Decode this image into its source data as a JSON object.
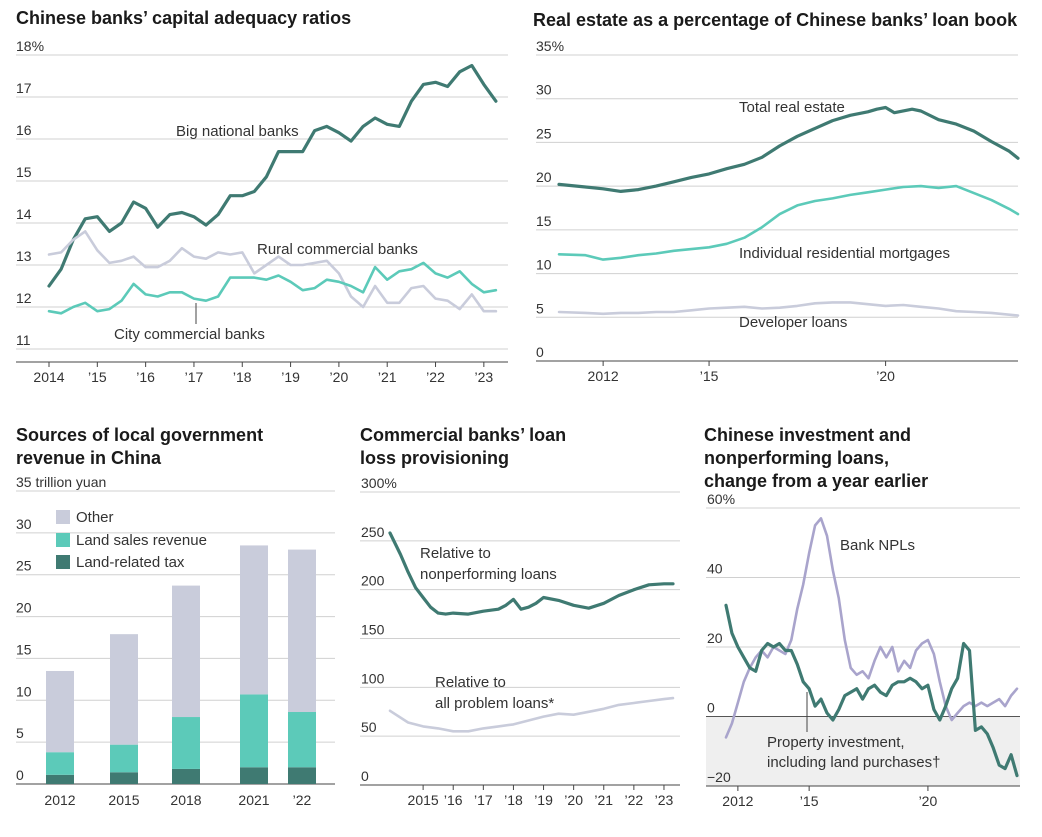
{
  "colors": {
    "dark": "#3f7a72",
    "teal": "#5ccab9",
    "light": "#c9ccdb",
    "lavender": "#a9a4cc",
    "grid": "#d0d0d0",
    "axis": "#333333",
    "shade": "#efefef"
  },
  "chart_data": [
    {
      "id": "car",
      "type": "line",
      "title": "Chinese banks’ capital adequacy ratios",
      "xlabel": "",
      "ylabel": "%",
      "xlim": [
        2014,
        2023.5
      ],
      "ylim": [
        11,
        18
      ],
      "yticks": [
        11,
        12,
        13,
        14,
        15,
        16,
        17,
        18
      ],
      "ytick_labels": [
        "11",
        "12",
        "13",
        "14",
        "15",
        "16",
        "17",
        "18%"
      ],
      "xticks": [
        2014,
        2015,
        2016,
        2017,
        2018,
        2019,
        2020,
        2021,
        2022,
        2023
      ],
      "xtick_labels": [
        "2014",
        "’15",
        "’16",
        "’17",
        "’18",
        "’19",
        "’20",
        "’21",
        "’22",
        "’23"
      ],
      "series": [
        {
          "name": "Big national banks",
          "color": "dark",
          "width": 3.2,
          "x": [
            2014,
            2014.25,
            2014.5,
            2014.75,
            2015,
            2015.25,
            2015.5,
            2015.75,
            2016,
            2016.25,
            2016.5,
            2016.75,
            2017,
            2017.25,
            2017.5,
            2017.75,
            2018,
            2018.25,
            2018.5,
            2018.75,
            2019,
            2019.25,
            2019.5,
            2019.75,
            2020,
            2020.25,
            2020.5,
            2020.75,
            2021,
            2021.25,
            2021.5,
            2021.75,
            2022,
            2022.25,
            2022.5,
            2022.75,
            2023,
            2023.25
          ],
          "y": [
            12.5,
            12.9,
            13.6,
            14.1,
            14.15,
            13.8,
            14.0,
            14.5,
            14.35,
            13.9,
            14.2,
            14.25,
            14.15,
            13.95,
            14.2,
            14.65,
            14.65,
            14.75,
            15.1,
            15.7,
            15.7,
            15.7,
            16.2,
            16.3,
            16.15,
            15.95,
            16.3,
            16.5,
            16.35,
            16.3,
            16.9,
            17.3,
            17.35,
            17.25,
            17.6,
            17.75,
            17.3,
            16.9
          ]
        },
        {
          "name": "Rural commercial banks",
          "color": "light",
          "width": 2.6,
          "x": [
            2014,
            2014.25,
            2014.5,
            2014.75,
            2015,
            2015.25,
            2015.5,
            2015.75,
            2016,
            2016.25,
            2016.5,
            2016.75,
            2017,
            2017.25,
            2017.5,
            2017.75,
            2018,
            2018.25,
            2018.5,
            2018.75,
            2019,
            2019.25,
            2019.5,
            2019.75,
            2020,
            2020.25,
            2020.5,
            2020.75,
            2021,
            2021.25,
            2021.5,
            2021.75,
            2022,
            2022.25,
            2022.5,
            2022.75,
            2023,
            2023.25
          ],
          "y": [
            13.25,
            13.3,
            13.6,
            13.8,
            13.35,
            13.05,
            13.1,
            13.2,
            12.95,
            12.95,
            13.1,
            13.4,
            13.2,
            13.15,
            13.3,
            13.25,
            13.3,
            12.8,
            13.0,
            13.2,
            13.0,
            13.0,
            13.05,
            13.1,
            12.8,
            12.25,
            12.0,
            12.5,
            12.1,
            12.1,
            12.45,
            12.5,
            12.2,
            12.15,
            11.95,
            12.3,
            11.9,
            11.9
          ]
        },
        {
          "name": "City commercial banks",
          "color": "teal",
          "width": 2.6,
          "x": [
            2014,
            2014.25,
            2014.5,
            2014.75,
            2015,
            2015.25,
            2015.5,
            2015.75,
            2016,
            2016.25,
            2016.5,
            2016.75,
            2017,
            2017.25,
            2017.5,
            2017.75,
            2018,
            2018.25,
            2018.5,
            2018.75,
            2019,
            2019.25,
            2019.5,
            2019.75,
            2020,
            2020.25,
            2020.5,
            2020.75,
            2021,
            2021.25,
            2021.5,
            2021.75,
            2022,
            2022.25,
            2022.5,
            2022.75,
            2023,
            2023.25
          ],
          "y": [
            11.9,
            11.85,
            12.0,
            12.1,
            11.9,
            11.95,
            12.15,
            12.55,
            12.3,
            12.25,
            12.35,
            12.35,
            12.2,
            12.15,
            12.25,
            12.7,
            12.7,
            12.7,
            12.65,
            12.75,
            12.6,
            12.4,
            12.45,
            12.65,
            12.6,
            12.5,
            12.35,
            12.95,
            12.65,
            12.85,
            12.9,
            13.05,
            12.8,
            12.7,
            12.85,
            12.55,
            12.35,
            12.4
          ]
        }
      ],
      "annotations": [
        "Big national banks",
        "Rural commercial banks",
        "City commercial banks"
      ]
    },
    {
      "id": "re",
      "type": "line",
      "title": "Real estate as a percentage of Chinese banks’ loan book",
      "xlabel": "",
      "ylabel": "%",
      "xlim": [
        2010.75,
        2023.75
      ],
      "ylim": [
        0,
        35
      ],
      "yticks": [
        0,
        5,
        10,
        15,
        20,
        25,
        30,
        35
      ],
      "ytick_labels": [
        "0",
        "5",
        "10",
        "15",
        "20",
        "25",
        "30",
        "35%"
      ],
      "xticks": [
        2012,
        2015,
        2020
      ],
      "xtick_labels": [
        "2012",
        "’15",
        "’20"
      ],
      "series": [
        {
          "name": "Total real estate",
          "color": "dark",
          "width": 3.2,
          "x": [
            2010.75,
            2011.5,
            2012,
            2012.5,
            2013,
            2013.5,
            2014,
            2014.5,
            2015,
            2015.5,
            2016,
            2016.5,
            2017,
            2017.5,
            2018,
            2018.5,
            2019,
            2019.5,
            2019.75,
            2020,
            2020.25,
            2020.75,
            2021,
            2021.5,
            2022,
            2022.5,
            2023,
            2023.5,
            2023.75
          ],
          "y": [
            20.2,
            19.9,
            19.7,
            19.4,
            19.6,
            20.0,
            20.5,
            21.0,
            21.4,
            22.0,
            22.5,
            23.3,
            24.6,
            25.7,
            26.6,
            27.5,
            28.1,
            28.5,
            28.8,
            29.0,
            28.4,
            28.8,
            28.6,
            27.6,
            27.1,
            26.3,
            25.1,
            24.0,
            23.2
          ]
        },
        {
          "name": "Individual residential mortgages",
          "color": "teal",
          "width": 2.6,
          "x": [
            2010.75,
            2011.5,
            2012,
            2012.5,
            2013,
            2013.5,
            2014,
            2014.5,
            2015,
            2015.5,
            2016,
            2016.5,
            2017,
            2017.5,
            2018,
            2018.5,
            2019,
            2019.5,
            2020,
            2020.5,
            2021,
            2021.5,
            2022,
            2022.5,
            2023,
            2023.5,
            2023.75
          ],
          "y": [
            12.2,
            12.1,
            11.6,
            11.8,
            12.1,
            12.3,
            12.6,
            12.8,
            13.0,
            13.4,
            14.1,
            15.3,
            16.8,
            17.8,
            18.3,
            18.6,
            19.0,
            19.3,
            19.6,
            19.9,
            20.0,
            19.8,
            20.0,
            19.2,
            18.4,
            17.4,
            16.8
          ]
        },
        {
          "name": "Developer loans",
          "color": "light",
          "width": 2.6,
          "x": [
            2010.75,
            2011.5,
            2012,
            2012.5,
            2013,
            2013.5,
            2014,
            2014.5,
            2015,
            2015.5,
            2016,
            2016.5,
            2017,
            2017.5,
            2018,
            2018.5,
            2019,
            2019.5,
            2020,
            2020.5,
            2021,
            2021.5,
            2022,
            2022.5,
            2023,
            2023.5,
            2023.75
          ],
          "y": [
            5.6,
            5.5,
            5.4,
            5.5,
            5.5,
            5.6,
            5.6,
            5.8,
            6.0,
            6.1,
            6.2,
            6.0,
            6.1,
            6.3,
            6.6,
            6.7,
            6.7,
            6.5,
            6.3,
            6.4,
            6.2,
            6.0,
            5.7,
            5.6,
            5.5,
            5.3,
            5.2
          ]
        }
      ],
      "annotations": [
        "Total real estate",
        "Individual residential mortgages",
        "Developer loans"
      ]
    },
    {
      "id": "rev",
      "type": "bar",
      "title": "Sources of local government revenue in China",
      "ylabel": "trillion yuan",
      "ylim": [
        0,
        35
      ],
      "yticks": [
        0,
        5,
        10,
        15,
        20,
        25,
        30,
        35
      ],
      "ytick_labels": [
        "0",
        "5",
        "10",
        "15",
        "20",
        "25",
        "30",
        "35 trillion yuan"
      ],
      "categories": [
        "2012",
        "2015",
        "2018",
        "2021",
        "’22"
      ],
      "series": [
        {
          "name": "Land-related tax",
          "color": "dark",
          "values": [
            1.1,
            1.4,
            1.8,
            2.0,
            2.0
          ]
        },
        {
          "name": "Land sales revenue",
          "color": "teal",
          "values": [
            2.7,
            3.3,
            6.2,
            8.7,
            6.6
          ]
        },
        {
          "name": "Other",
          "color": "light",
          "values": [
            9.7,
            13.2,
            15.7,
            17.8,
            19.4
          ]
        }
      ],
      "legend": [
        "Other",
        "Land sales revenue",
        "Land-related tax"
      ]
    },
    {
      "id": "prov",
      "type": "line",
      "title": "Commercial banks’ loan loss provisioning",
      "ylabel": "%",
      "xlim": [
        2013.9,
        2023.3
      ],
      "ylim": [
        0,
        300
      ],
      "yticks": [
        0,
        50,
        100,
        150,
        200,
        250,
        300
      ],
      "ytick_labels": [
        "0",
        "50",
        "100",
        "150",
        "200",
        "250",
        "300%"
      ],
      "xticks": [
        2015,
        2016,
        2017,
        2018,
        2019,
        2020,
        2021,
        2022,
        2023
      ],
      "xtick_labels": [
        "2015",
        "’16",
        "’17",
        "’18",
        "’19",
        "’20",
        "’21",
        "’22",
        "’23"
      ],
      "series": [
        {
          "name": "Relative to nonperforming loans",
          "color": "dark",
          "width": 3.2,
          "x": [
            2013.9,
            2014.25,
            2014.5,
            2014.75,
            2015,
            2015.25,
            2015.5,
            2015.75,
            2016,
            2016.5,
            2017,
            2017.5,
            2017.75,
            2018,
            2018.25,
            2018.5,
            2018.75,
            2019,
            2019.5,
            2020,
            2020.5,
            2021,
            2021.5,
            2022,
            2022.5,
            2023,
            2023.3
          ],
          "y": [
            258,
            236,
            218,
            202,
            192,
            182,
            176,
            175,
            176,
            175,
            178,
            180,
            184,
            190,
            180,
            182,
            186,
            192,
            189,
            184,
            181,
            186,
            194,
            200,
            205,
            206,
            206
          ]
        },
        {
          "name": "Relative to all problem loans*",
          "color": "light",
          "width": 2.6,
          "x": [
            2013.9,
            2014.5,
            2015,
            2015.5,
            2016,
            2016.5,
            2017,
            2017.5,
            2018,
            2018.5,
            2019,
            2019.5,
            2020,
            2020.5,
            2021,
            2021.5,
            2022,
            2022.5,
            2023,
            2023.3
          ],
          "y": [
            76,
            64,
            60,
            58,
            55,
            55,
            58,
            60,
            62,
            66,
            70,
            73,
            72,
            75,
            78,
            82,
            84,
            86,
            88,
            89
          ]
        }
      ],
      "annotations": [
        "Relative to",
        "nonperforming loans",
        "Relative to",
        "all problem loans*"
      ]
    },
    {
      "id": "npl",
      "type": "line",
      "title": "Chinese investment and nonperforming loans, change from a year earlier",
      "ylabel": "%",
      "xlim": [
        2011.5,
        2023.75
      ],
      "ylim": [
        -20,
        60
      ],
      "yticks": [
        -20,
        0,
        20,
        40,
        60
      ],
      "ytick_labels": [
        "−20",
        "0",
        "20",
        "40",
        "60%"
      ],
      "xticks": [
        2012,
        2015,
        2020
      ],
      "xtick_labels": [
        "2012",
        "’15",
        "’20"
      ],
      "series": [
        {
          "name": "Bank NPLs",
          "color": "lavender",
          "width": 2.6,
          "x": [
            2011.5,
            2011.75,
            2012,
            2012.25,
            2012.5,
            2012.75,
            2013,
            2013.25,
            2013.5,
            2013.75,
            2014,
            2014.25,
            2014.5,
            2014.75,
            2015,
            2015.25,
            2015.5,
            2015.75,
            2016,
            2016.25,
            2016.5,
            2016.75,
            2017,
            2017.25,
            2017.5,
            2017.75,
            2018,
            2018.25,
            2018.5,
            2018.75,
            2019,
            2019.25,
            2019.5,
            2019.75,
            2020,
            2020.25,
            2020.5,
            2020.75,
            2021,
            2021.25,
            2021.5,
            2021.75,
            2022,
            2022.25,
            2022.5,
            2022.75,
            2023,
            2023.25,
            2023.5,
            2023.75
          ],
          "y": [
            -6,
            -2,
            4,
            10,
            14,
            17,
            19,
            17,
            20,
            19,
            18,
            22,
            31,
            38,
            47,
            55,
            57,
            52,
            42,
            34,
            22,
            14,
            12,
            13,
            11,
            16,
            20,
            17,
            20,
            13,
            16,
            14,
            19,
            21,
            22,
            18,
            10,
            3,
            -1,
            1,
            3,
            4,
            3,
            4,
            3,
            4,
            5,
            3,
            6,
            8
          ]
        },
        {
          "name": "Property investment, including land purchases†",
          "color": "dark",
          "width": 3.2,
          "x": [
            2011.5,
            2011.75,
            2012,
            2012.25,
            2012.5,
            2012.75,
            2013,
            2013.25,
            2013.5,
            2013.75,
            2014,
            2014.25,
            2014.5,
            2014.75,
            2015,
            2015.25,
            2015.5,
            2015.75,
            2016,
            2016.25,
            2016.5,
            2016.75,
            2017,
            2017.25,
            2017.5,
            2017.75,
            2018,
            2018.25,
            2018.5,
            2018.75,
            2019,
            2019.25,
            2019.5,
            2019.75,
            2020,
            2020.25,
            2020.5,
            2020.75,
            2021,
            2021.25,
            2021.5,
            2021.75,
            2022,
            2022.25,
            2022.5,
            2022.75,
            2023,
            2023.25,
            2023.5,
            2023.75
          ],
          "y": [
            32,
            24,
            20,
            17,
            14,
            13,
            19,
            21,
            20,
            21,
            19,
            19,
            15,
            10,
            8,
            3,
            5,
            1,
            -1,
            2,
            6,
            7,
            8,
            5,
            8,
            9,
            7,
            6,
            9,
            10,
            10,
            11,
            10,
            8,
            9,
            2,
            -1,
            3,
            8,
            11,
            21,
            19,
            -4,
            -3,
            -5,
            -9,
            -14,
            -15,
            -11,
            -17
          ]
        }
      ],
      "annotations": [
        "Bank NPLs",
        "Property investment,",
        "including land purchases†"
      ]
    }
  ]
}
